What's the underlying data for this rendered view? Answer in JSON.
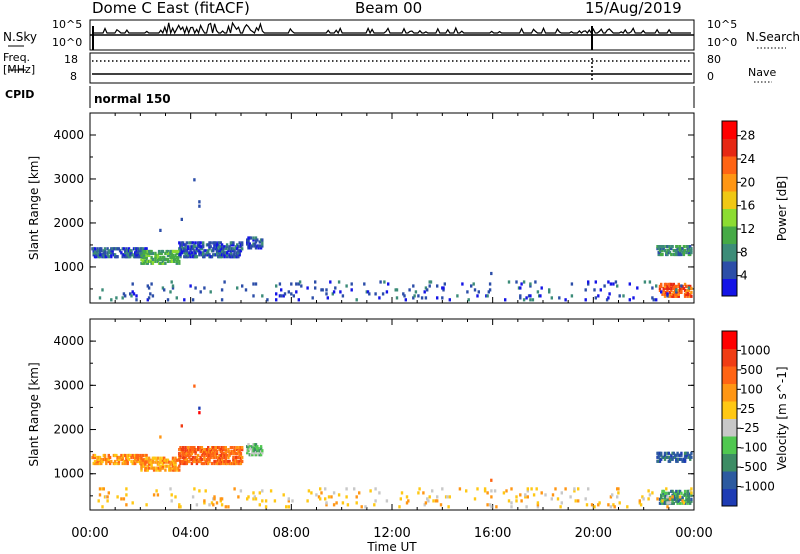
{
  "header": {
    "station": "Dome C East (fitACF)",
    "beam": "Beam 00",
    "date": "15/Aug/2019"
  },
  "top_panels": {
    "nsky_label": "N.Sky",
    "nsearch_label": "N.Search",
    "freq_label_line1": "Freq.",
    "freq_label_line2": "[MHz]",
    "nave_label": "Nave",
    "cpid_label": "CPID",
    "cpid_value": "normal 150",
    "left_ticks_noise": [
      "10^5",
      "10^0"
    ],
    "right_ticks_noise": [
      "10^5",
      "10^0"
    ],
    "left_ticks_freq": [
      "18",
      "8"
    ],
    "right_ticks_freq": [
      "80",
      "0"
    ]
  },
  "x_axis": {
    "label": "Time UT",
    "ticks": [
      "00:00",
      "04:00",
      "08:00",
      "12:00",
      "16:00",
      "20:00",
      "00:00"
    ]
  },
  "chart_data": [
    {
      "type": "heatmap",
      "panel": "power",
      "ylabel": "Slant Range [km]",
      "ylim": [
        180,
        4500
      ],
      "y_ticks": [
        "1000",
        "2000",
        "3000",
        "4000"
      ],
      "xlim_hours": [
        0,
        24
      ],
      "colorbar_label": "Power [dB]",
      "colorbar_ticks": [
        "4",
        "8",
        "12",
        "16",
        "20",
        "24",
        "28"
      ],
      "colorbar_colors": [
        "#1414e6",
        "#2c4ea8",
        "#3c8c78",
        "#46aa46",
        "#8cdc32",
        "#f0c814",
        "#ff9614",
        "#ff6414",
        "#e62814",
        "#ff0000"
      ],
      "clusters": [
        {
          "t": [
            0.05,
            2.2
          ],
          "range": [
            1200,
            1400
          ],
          "level": 1
        },
        {
          "t": [
            2.0,
            3.5
          ],
          "range": [
            1050,
            1350
          ],
          "level": 3
        },
        {
          "t": [
            3.5,
            6.0
          ],
          "range": [
            1200,
            1550
          ],
          "level": 1
        },
        {
          "t": [
            6.2,
            6.8
          ],
          "range": [
            1400,
            1650
          ],
          "level": 1
        },
        {
          "t": [
            22.5,
            23.9
          ],
          "range": [
            1250,
            1450
          ],
          "level": 2
        },
        {
          "t": [
            22.6,
            23.9
          ],
          "range": [
            300,
            600
          ],
          "level": 7
        },
        {
          "t": [
            0.05,
            23.9
          ],
          "range": [
            220,
            650
          ],
          "level": 1
        }
      ],
      "dots": [
        {
          "t": 4.1,
          "range": 2950,
          "level": 1
        },
        {
          "t": 4.3,
          "range": 2450,
          "level": 1
        },
        {
          "t": 4.3,
          "range": 2350,
          "level": 1
        },
        {
          "t": 3.6,
          "range": 2050,
          "level": 1
        },
        {
          "t": 2.75,
          "range": 1800,
          "level": 1
        },
        {
          "t": 15.9,
          "range": 820,
          "level": 1
        }
      ]
    },
    {
      "type": "heatmap",
      "panel": "velocity",
      "ylabel": "Slant Range [km]",
      "ylim": [
        180,
        4500
      ],
      "y_ticks": [
        "1000",
        "2000",
        "3000",
        "4000"
      ],
      "xlim_hours": [
        0,
        24
      ],
      "colorbar_label": "Velocity [m s^-1]",
      "colorbar_ticks": [
        "1000",
        "500",
        "100",
        "25",
        "-25",
        "-100",
        "-500",
        "-1000"
      ],
      "colorbar_colors": [
        "#1e3cb4",
        "#2c5aa0",
        "#3c8c64",
        "#50c850",
        "#c8c8c8",
        "#ffc814",
        "#ff9614",
        "#ff6414",
        "#f03c14",
        "#ff0000"
      ],
      "clusters": [
        {
          "t": [
            0.05,
            2.2
          ],
          "range": [
            1200,
            1400
          ],
          "level": 6
        },
        {
          "t": [
            2.0,
            3.5
          ],
          "range": [
            1050,
            1350
          ],
          "level": 6
        },
        {
          "t": [
            3.5,
            6.0
          ],
          "range": [
            1200,
            1600
          ],
          "level": 7
        },
        {
          "t": [
            6.2,
            6.8
          ],
          "range": [
            1400,
            1650
          ],
          "level": 3
        },
        {
          "t": [
            22.5,
            23.9
          ],
          "range": [
            1250,
            1450
          ],
          "level": 1
        },
        {
          "t": [
            22.6,
            23.9
          ],
          "range": [
            300,
            600
          ],
          "level": 2
        },
        {
          "t": [
            0.05,
            23.9
          ],
          "range": [
            220,
            650
          ],
          "level": 5
        }
      ],
      "dots": [
        {
          "t": 4.1,
          "range": 2950,
          "level": 7
        },
        {
          "t": 4.3,
          "range": 2450,
          "level": 0
        },
        {
          "t": 4.3,
          "range": 2350,
          "level": 9
        },
        {
          "t": 3.6,
          "range": 2050,
          "level": 8
        },
        {
          "t": 2.75,
          "range": 1800,
          "level": 6
        },
        {
          "t": 15.9,
          "range": 820,
          "level": 7
        }
      ]
    }
  ]
}
